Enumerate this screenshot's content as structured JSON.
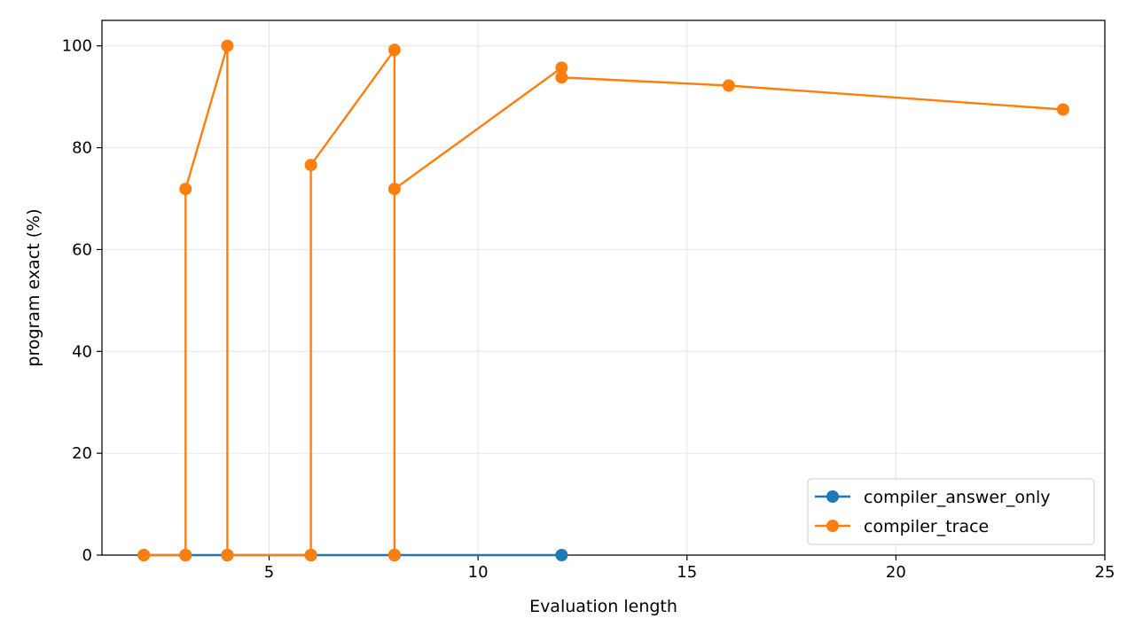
{
  "chart_data": {
    "type": "line",
    "title": "",
    "xlabel": "Evaluation length",
    "ylabel": "program exact (%)",
    "xlim": [
      1.0,
      25.0
    ],
    "ylim": [
      0,
      105
    ],
    "xticks": [
      5,
      10,
      15,
      20,
      25
    ],
    "yticks": [
      0,
      20,
      40,
      60,
      80,
      100
    ],
    "xtick_labels": [
      "5",
      "10",
      "15",
      "20",
      "25"
    ],
    "ytick_labels": [
      "0",
      "20",
      "40",
      "60",
      "80",
      "100"
    ],
    "grid": true,
    "legend": {
      "placement": "lower-right"
    },
    "series": [
      {
        "name": "compiler_answer_only",
        "color": "#1f77b4",
        "marker": "circle",
        "points": [
          {
            "x": 2,
            "y": 0
          },
          {
            "x": 3,
            "y": 0
          },
          {
            "x": 3,
            "y": 0
          },
          {
            "x": 4,
            "y": 0
          },
          {
            "x": 4,
            "y": 0
          },
          {
            "x": 6,
            "y": 0
          },
          {
            "x": 6,
            "y": 0
          },
          {
            "x": 8,
            "y": 0
          },
          {
            "x": 8,
            "y": 0
          },
          {
            "x": 8,
            "y": 0
          },
          {
            "x": 12,
            "y": 0
          }
        ]
      },
      {
        "name": "compiler_trace",
        "color": "#ff7f0e",
        "marker": "circle",
        "points": [
          {
            "x": 2,
            "y": 0
          },
          {
            "x": 3,
            "y": 0
          },
          {
            "x": 3,
            "y": 71.9
          },
          {
            "x": 4,
            "y": 100
          },
          {
            "x": 4,
            "y": 0
          },
          {
            "x": 6,
            "y": 0
          },
          {
            "x": 6,
            "y": 76.6
          },
          {
            "x": 8,
            "y": 99.2
          },
          {
            "x": 8,
            "y": 0
          },
          {
            "x": 8,
            "y": 71.9
          },
          {
            "x": 12,
            "y": 95.7
          },
          {
            "x": 12,
            "y": 93.8
          },
          {
            "x": 16,
            "y": 92.2
          },
          {
            "x": 24,
            "y": 87.5
          }
        ]
      }
    ]
  }
}
